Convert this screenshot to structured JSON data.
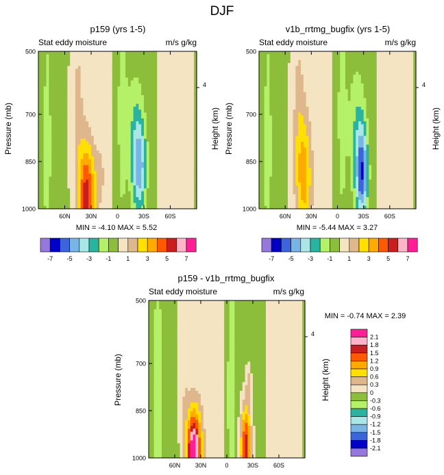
{
  "figure": {
    "title": "DJF"
  },
  "palette": {
    "pos": [
      "#f5e4c1",
      "#deb88c",
      "#ffe000",
      "#ffaa00",
      "#ff5a00",
      "#c81e1e",
      "#ffb4c8",
      "#ff1e96"
    ],
    "neg": [
      "#8cbe3c",
      "#b4f068",
      "#28b4a0",
      "#aae6e6",
      "#78b4e6",
      "#3c64dc",
      "#0000c8",
      "#9678dc"
    ],
    "diff_colors": [
      "#9678dc",
      "#0000c8",
      "#3c64dc",
      "#78b4e6",
      "#aae6e6",
      "#28b4a0",
      "#b4f068",
      "#8cbe3c",
      "#f5e4c1",
      "#deb88c",
      "#ffe000",
      "#ffaa00",
      "#ff5a00",
      "#c81e1e",
      "#ffb4c8",
      "#ff1e96"
    ]
  },
  "chart_data": [
    {
      "id": "p1",
      "type": "contour",
      "title": "p159 (yrs 1-5)",
      "left_label": "Stat eddy moisture",
      "right_label": "m/s g/kg",
      "ylabel": "Pressure (mb)",
      "ylabel_right": "Height (km)",
      "yticks": [
        "500",
        "700",
        "850",
        "1000"
      ],
      "ytick_values": [
        500,
        700,
        850,
        1000
      ],
      "ylim": [
        500,
        1000
      ],
      "right_tick": "4",
      "xticks": [
        "60N",
        "30N",
        "0",
        "30S",
        "60S"
      ],
      "xtick_values": [
        60,
        30,
        0,
        -30,
        -60
      ],
      "xlim": [
        90,
        -90
      ],
      "min_label": "MIN = -4.10  MAX =  5.52",
      "min": -4.1,
      "max": 5.52,
      "levels": [
        -7,
        -6,
        -5,
        -4,
        -3,
        -2,
        -1,
        0,
        1,
        2,
        3,
        4,
        5,
        6,
        7
      ],
      "features": [
        {
          "lat": 35,
          "p": 965,
          "value": 5.5,
          "wlat": 9,
          "wp": 170
        },
        {
          "lat": 45,
          "p": 700,
          "value": 1.3,
          "wlat": 7,
          "wp": 320
        },
        {
          "lat": 20,
          "p": 900,
          "value": 1.2,
          "wlat": 6,
          "wp": 100
        },
        {
          "lat": -25,
          "p": 870,
          "value": -4.1,
          "wlat": 8,
          "wp": 150
        },
        {
          "lat": -20,
          "p": 740,
          "value": -1.5,
          "wlat": 10,
          "wp": 200
        },
        {
          "lat": -5,
          "p": 700,
          "value": -1.4,
          "wlat": 6,
          "wp": 400
        },
        {
          "lat": 80,
          "p": 800,
          "value": -1.3,
          "wlat": 6,
          "wp": 500
        }
      ]
    },
    {
      "id": "p2",
      "type": "contour",
      "title": "v1b_rrtmg_bugfix (yrs 1-5)",
      "left_label": "Stat eddy moisture",
      "right_label": "m/s g/kg",
      "ylabel": "Pressure (mb)",
      "ylabel_right": "Height (km)",
      "yticks": [
        "500",
        "700",
        "850",
        "1000"
      ],
      "ytick_values": [
        500,
        700,
        850,
        1000
      ],
      "ylim": [
        500,
        1000
      ],
      "right_tick": "4",
      "xticks": [
        "60N",
        "30N",
        "0",
        "30S",
        "60S"
      ],
      "xtick_values": [
        60,
        30,
        0,
        -30,
        -60
      ],
      "xlim": [
        90,
        -90
      ],
      "min_label": "MIN = -5.44  MAX =  3.27",
      "min": -5.44,
      "max": 3.27,
      "levels": [
        -7,
        -6,
        -5,
        -4,
        -3,
        -2,
        -1,
        0,
        1,
        2,
        3,
        4,
        5,
        6,
        7
      ],
      "features": [
        {
          "lat": 38,
          "p": 900,
          "value": 3.2,
          "wlat": 9,
          "wp": 200
        },
        {
          "lat": 45,
          "p": 700,
          "value": 1.3,
          "wlat": 7,
          "wp": 320
        },
        {
          "lat": -28,
          "p": 890,
          "value": -5.4,
          "wlat": 7,
          "wp": 150
        },
        {
          "lat": -22,
          "p": 740,
          "value": -1.6,
          "wlat": 10,
          "wp": 220
        },
        {
          "lat": -5,
          "p": 700,
          "value": -1.4,
          "wlat": 6,
          "wp": 400
        },
        {
          "lat": 80,
          "p": 800,
          "value": -1.3,
          "wlat": 6,
          "wp": 500
        }
      ]
    },
    {
      "id": "p3",
      "type": "contour",
      "title": "p159 - v1b_rrtmg_bugfix",
      "left_label": "Stat eddy moisture",
      "right_label": "m/s g/kg",
      "ylabel": "Pressure (mb)",
      "ylabel_right": "Height (km)",
      "yticks": [
        "500",
        "700",
        "850",
        "1000"
      ],
      "ytick_values": [
        500,
        700,
        850,
        1000
      ],
      "ylim": [
        500,
        1000
      ],
      "right_tick": "4",
      "xticks": [
        "60N",
        "30N",
        "0",
        "30S",
        "60S"
      ],
      "xtick_values": [
        60,
        30,
        0,
        -30,
        -60
      ],
      "xlim": [
        90,
        -90
      ],
      "min_label": "MIN = -0.74  MAX =  2.39",
      "min": -0.74,
      "max": 2.39,
      "levels": [
        -2.1,
        -1.8,
        -1.5,
        -1.2,
        -0.9,
        -0.6,
        -0.3,
        0,
        0.3,
        0.6,
        0.9,
        1.2,
        1.5,
        1.8,
        2.1
      ],
      "features": [
        {
          "lat": 38,
          "p": 980,
          "value": 2.4,
          "wlat": 8,
          "wp": 130
        },
        {
          "lat": -22,
          "p": 960,
          "value": 1.8,
          "wlat": 6,
          "wp": 130
        },
        {
          "lat": -25,
          "p": 760,
          "value": 0.5,
          "wlat": 3,
          "wp": 60
        },
        {
          "lat": 50,
          "p": 700,
          "value": 0.35,
          "wlat": 7,
          "wp": 300
        },
        {
          "lat": -5,
          "p": 800,
          "value": -0.5,
          "wlat": 5,
          "wp": 400
        },
        {
          "lat": 80,
          "p": 780,
          "value": -0.4,
          "wlat": 5,
          "wp": 500
        }
      ]
    }
  ],
  "colorbar_main": {
    "labels": [
      "-7",
      "-5",
      "-3",
      "-1",
      "1",
      "3",
      "5",
      "7"
    ]
  },
  "colorbar_diff": {
    "labels": [
      "2.1",
      "1.8",
      "1.5",
      "1.2",
      "0.9",
      "0.6",
      "0.3",
      "0",
      "-0.3",
      "-0.6",
      "-0.9",
      "-1.2",
      "-1.5",
      "-1.8",
      "-2.1"
    ]
  }
}
